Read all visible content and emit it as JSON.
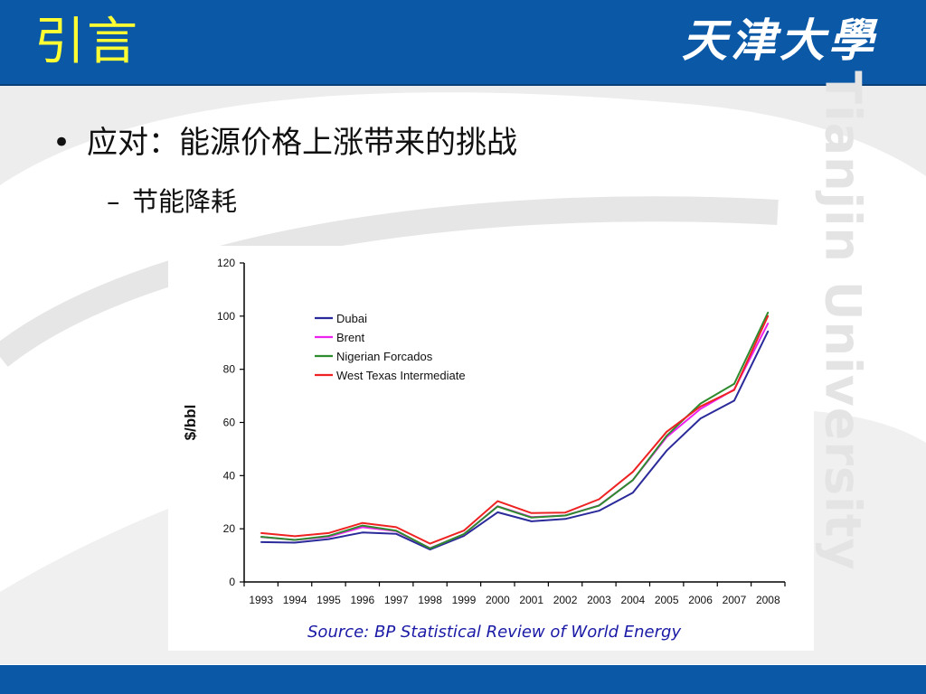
{
  "slide": {
    "title": "引言",
    "logo_text": "天津大學",
    "watermark": "Tianjin University",
    "bullet_1": "应对：能源价格上涨带来的挑战",
    "bullet_2": "节能降耗",
    "source": "Source: BP Statistical Review of World Energy"
  },
  "colors": {
    "bar": "#0a58a6",
    "title": "#ffff33",
    "source_text": "#1a1aa6"
  },
  "chart_data": {
    "type": "line",
    "title": "",
    "xlabel": "",
    "ylabel": "$/bbl",
    "ylim": [
      0,
      120
    ],
    "yticks": [
      0,
      20,
      40,
      60,
      80,
      100,
      120
    ],
    "x": [
      "1993",
      "1994",
      "1995",
      "1996",
      "1997",
      "1998",
      "1999",
      "2000",
      "2001",
      "2002",
      "2003",
      "2004",
      "2005",
      "2006",
      "2007",
      "2008"
    ],
    "legend_position": "top-left",
    "grid": false,
    "series": [
      {
        "name": "Dubai",
        "color": "#2a2a9a",
        "values": [
          15.0,
          14.8,
          16.1,
          18.6,
          18.1,
          12.2,
          17.3,
          26.2,
          22.8,
          23.7,
          26.8,
          33.6,
          49.4,
          61.5,
          68.2,
          94.3
        ]
      },
      {
        "name": "Brent",
        "color": "#ee22ee",
        "values": [
          16.9,
          15.8,
          17.0,
          20.6,
          19.1,
          12.7,
          17.9,
          28.5,
          24.4,
          25.0,
          28.8,
          38.3,
          54.5,
          65.1,
          72.4,
          97.3
        ]
      },
      {
        "name": "Nigerian Forcados",
        "color": "#2e8b2e",
        "values": [
          17.0,
          15.8,
          17.3,
          21.2,
          19.3,
          12.6,
          18.0,
          28.4,
          24.2,
          25.0,
          28.7,
          38.3,
          55.0,
          67.1,
          74.5,
          101.4
        ]
      },
      {
        "name": "West Texas Intermediate",
        "color": "#ee2222",
        "values": [
          18.4,
          17.2,
          18.4,
          22.2,
          20.6,
          14.4,
          19.3,
          30.4,
          25.9,
          26.1,
          31.1,
          41.4,
          56.5,
          66.0,
          72.2,
          100.1
        ]
      }
    ]
  }
}
